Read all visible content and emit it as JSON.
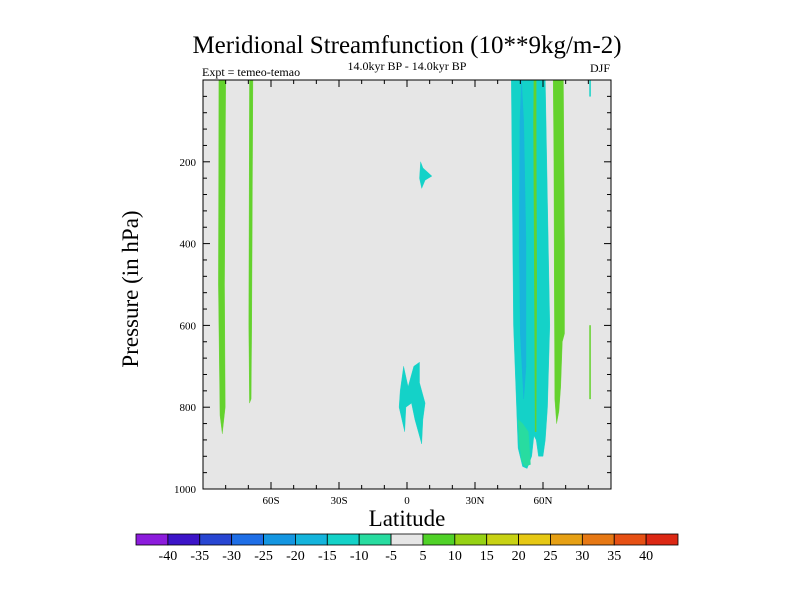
{
  "chart_data": {
    "type": "contour",
    "title": "Meridional Streamfunction (10**9kg/m-2)",
    "subtitle_left": "Expt = temeo-temao",
    "subtitle_center": "14.0kyr BP - 14.0kyr BP",
    "subtitle_right": "DJF",
    "xlabel": "Latitude",
    "ylabel": "Pressure (in hPa)",
    "xlim": [
      -90,
      90
    ],
    "ylim": [
      1000,
      0
    ],
    "x_ticks": [
      {
        "value": -60,
        "label": "60S"
      },
      {
        "value": -30,
        "label": "30S"
      },
      {
        "value": 0,
        "label": "0"
      },
      {
        "value": 30,
        "label": "30N"
      },
      {
        "value": 60,
        "label": "60N"
      }
    ],
    "y_ticks": [
      {
        "value": 200,
        "label": "200"
      },
      {
        "value": 400,
        "label": "400"
      },
      {
        "value": 600,
        "label": "600"
      },
      {
        "value": 800,
        "label": "800"
      },
      {
        "value": 1000,
        "label": "1000"
      }
    ],
    "background_color": "#e6e6e6",
    "colorbar": {
      "labels": [
        "-40",
        "-35",
        "-30",
        "-25",
        "-20",
        "-15",
        "-10",
        "-5",
        "5",
        "10",
        "15",
        "20",
        "25",
        "30",
        "35",
        "40"
      ],
      "colors": [
        "#8c1cdc",
        "#3c14c8",
        "#2846d2",
        "#1e6ee6",
        "#1496e1",
        "#14b4dc",
        "#14d2c8",
        "#28dca0",
        "#e6e6e6",
        "#50d228",
        "#96d214",
        "#c8d214",
        "#e6c814",
        "#e6a014",
        "#e67814",
        "#e65014",
        "#dc2814"
      ]
    },
    "regions": [
      {
        "name": "green-band-sh-1",
        "color": "#64d22d",
        "level": "5 to 10",
        "points": [
          [
            -83,
            0
          ],
          [
            -80,
            0
          ],
          [
            -80.5,
            500
          ],
          [
            -80.2,
            800
          ],
          [
            -81.5,
            865
          ],
          [
            -82.5,
            820
          ],
          [
            -83.2,
            500
          ]
        ]
      },
      {
        "name": "green-band-sh-2",
        "color": "#64d22d",
        "level": "5 to 10",
        "points": [
          [
            -69.5,
            0
          ],
          [
            -68,
            0
          ],
          [
            -68.5,
            600
          ],
          [
            -68.8,
            780
          ],
          [
            -69.5,
            790
          ],
          [
            -69.8,
            600
          ]
        ]
      },
      {
        "name": "cyan-blob-upper-eq",
        "color": "#14d2c8",
        "level": "-5 to -10",
        "points": [
          [
            6,
            200
          ],
          [
            7,
            215
          ],
          [
            11,
            235
          ],
          [
            8,
            245
          ],
          [
            6.5,
            265
          ],
          [
            5.5,
            240
          ]
        ]
      },
      {
        "name": "cyan-blob-lower-eq",
        "color": "#14d2c8",
        "level": "-5 to -10",
        "points": [
          [
            -1.5,
            700
          ],
          [
            0.5,
            750
          ],
          [
            3,
            700
          ],
          [
            5.5,
            690
          ],
          [
            5.5,
            740
          ],
          [
            8,
            790
          ],
          [
            7,
            830
          ],
          [
            6.5,
            890
          ],
          [
            3.5,
            830
          ],
          [
            2,
            790
          ],
          [
            -0.5,
            800
          ],
          [
            -1,
            860
          ],
          [
            -3.5,
            800
          ],
          [
            -3,
            760
          ]
        ]
      },
      {
        "name": "cyan-cell-nh",
        "color": "#14d2c8",
        "level": "-5 to -10",
        "points": [
          [
            46,
            0
          ],
          [
            61,
            0
          ],
          [
            62,
            300
          ],
          [
            63,
            600
          ],
          [
            62,
            800
          ],
          [
            61,
            880
          ],
          [
            60,
            920
          ],
          [
            58,
            920
          ],
          [
            57,
            880
          ],
          [
            56,
            870
          ],
          [
            55,
            920
          ],
          [
            53,
            950
          ],
          [
            51,
            945
          ],
          [
            49,
            900
          ],
          [
            48,
            750
          ],
          [
            47,
            600
          ],
          [
            46.5,
            300
          ]
        ]
      },
      {
        "name": "blue-core-nh",
        "color": "#19b4dc",
        "level": "-10 to -15",
        "points": [
          [
            50.5,
            0
          ],
          [
            51.5,
            100
          ],
          [
            52.5,
            400
          ],
          [
            52.5,
            700
          ],
          [
            51.5,
            780
          ],
          [
            50,
            620
          ],
          [
            49.5,
            400
          ],
          [
            49.8,
            100
          ]
        ]
      },
      {
        "name": "teal-base-nh",
        "color": "#28dca0",
        "level": "-5",
        "points": [
          [
            49,
            830
          ],
          [
            51,
            840
          ],
          [
            53.5,
            860
          ],
          [
            54.5,
            940
          ],
          [
            52,
            945
          ],
          [
            50.5,
            930
          ],
          [
            49.5,
            880
          ]
        ]
      },
      {
        "name": "green-gap-nh",
        "color": "#64d22d",
        "level": "5 to 10",
        "points": [
          [
            56,
            0
          ],
          [
            57,
            0
          ],
          [
            57,
            100
          ],
          [
            57.2,
            500
          ],
          [
            57,
            860
          ],
          [
            56.5,
            860
          ],
          [
            56.2,
            500
          ],
          [
            55.8,
            100
          ]
        ]
      },
      {
        "name": "green-band-nh",
        "color": "#64d22d",
        "level": "5 to 10",
        "points": [
          [
            64.5,
            0
          ],
          [
            69,
            0
          ],
          [
            69.5,
            400
          ],
          [
            69.5,
            620
          ],
          [
            68.5,
            640
          ],
          [
            67.8,
            750
          ],
          [
            67,
            810
          ],
          [
            66,
            840
          ],
          [
            65.2,
            780
          ],
          [
            65,
            500
          ],
          [
            64.8,
            200
          ]
        ]
      },
      {
        "name": "green-spike-nh",
        "color": "#64d22d",
        "level": "5 to 10",
        "points": [
          [
            80.5,
            600
          ],
          [
            81,
            600
          ],
          [
            81,
            780
          ],
          [
            80.5,
            780
          ]
        ]
      },
      {
        "name": "cyan-speck-nh",
        "color": "#14d2c8",
        "level": "-5 to -10",
        "points": [
          [
            80.5,
            0
          ],
          [
            81,
            0
          ],
          [
            81,
            40
          ],
          [
            80.5,
            40
          ]
        ]
      }
    ]
  }
}
